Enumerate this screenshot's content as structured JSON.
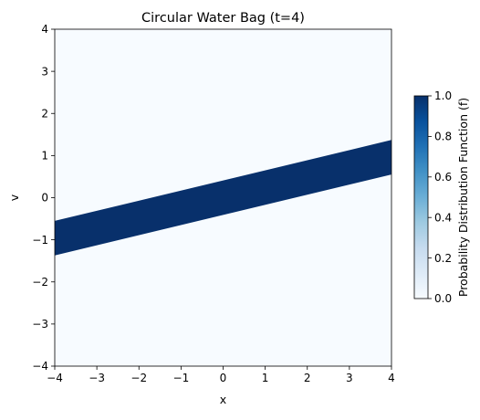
{
  "chart_data": {
    "type": "heatmap",
    "title": "Circular Water Bag (t=4)",
    "xlabel": "x",
    "ylabel": "v",
    "xlim": [
      -4,
      4
    ],
    "ylim": [
      -4,
      4
    ],
    "x_ticks": [
      -4,
      -3,
      -2,
      -1,
      0,
      1,
      2,
      3,
      4
    ],
    "y_ticks": [
      -4,
      -3,
      -2,
      -1,
      0,
      1,
      2,
      3,
      4
    ],
    "x_tick_labels": [
      "−4",
      "−3",
      "−2",
      "−1",
      "0",
      "1",
      "2",
      "3",
      "4"
    ],
    "y_tick_labels": [
      "−4",
      "−3",
      "−2",
      "−1",
      "0",
      "1",
      "2",
      "3",
      "4"
    ],
    "band": {
      "value": 1.0,
      "lower_edge": [
        {
          "x": -4,
          "v": -1.37
        },
        {
          "x": 4,
          "v": 0.55
        }
      ],
      "upper_edge": [
        {
          "x": -4,
          "v": -0.55
        },
        {
          "x": 4,
          "v": 1.37
        }
      ]
    },
    "background_value": 0.0,
    "colormap": "Blues",
    "colorbar": {
      "label": "Probability Distribution Function (f)",
      "range": [
        0,
        1
      ],
      "ticks": [
        0.0,
        0.2,
        0.4,
        0.6,
        0.8,
        1.0
      ],
      "tick_labels": [
        "0.0",
        "0.2",
        "0.4",
        "0.6",
        "0.8",
        "1.0"
      ],
      "low_color": "#f7fbff",
      "high_color": "#08306b"
    },
    "grid": false
  }
}
